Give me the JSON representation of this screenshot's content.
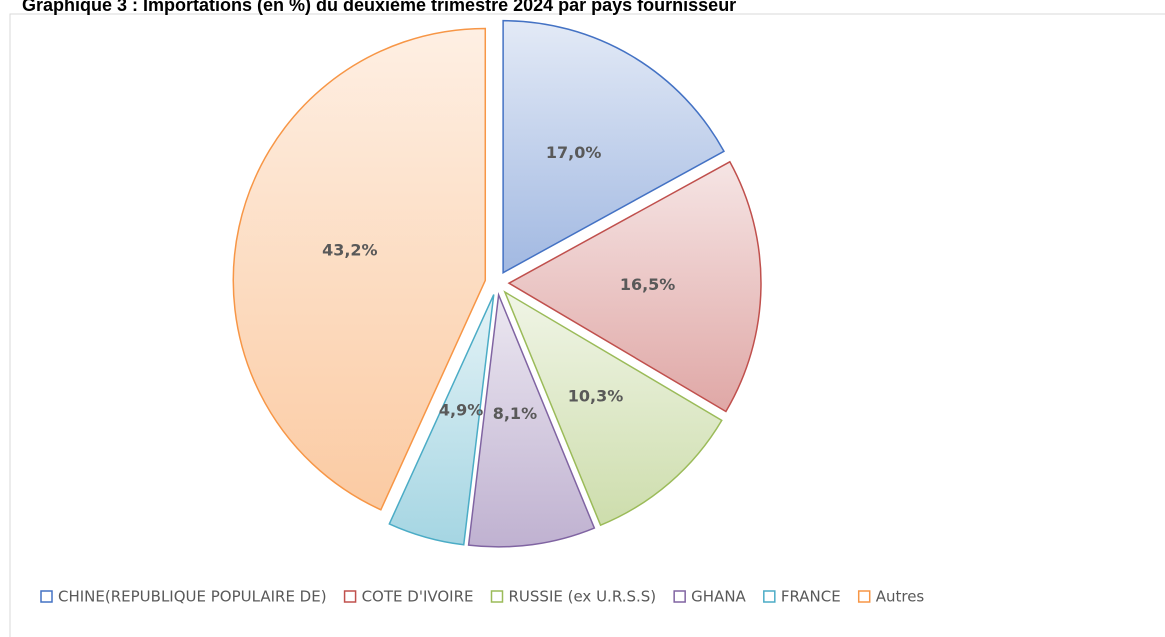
{
  "chart_data": {
    "type": "pie",
    "title": "Graphique 3 : Importations (en %) du deuxième trimestre 2024 par pays fournisseur",
    "categories": [
      "CHINE(REPUBLIQUE POPULAIRE DE)",
      "COTE D'IVOIRE",
      "RUSSIE (ex U.R.S.S)",
      "GHANA",
      "FRANCE",
      "Autres"
    ],
    "values": [
      17.0,
      16.5,
      10.3,
      8.1,
      4.9,
      43.2
    ],
    "value_labels": [
      "17,0%",
      "16,5%",
      "10,3%",
      "8,1%",
      "4,9%",
      "43,2%"
    ],
    "colors": [
      "#4472c4",
      "#c0504d",
      "#9bbb59",
      "#8064a2",
      "#4bacc6",
      "#f79646"
    ],
    "legend": "bottom"
  }
}
